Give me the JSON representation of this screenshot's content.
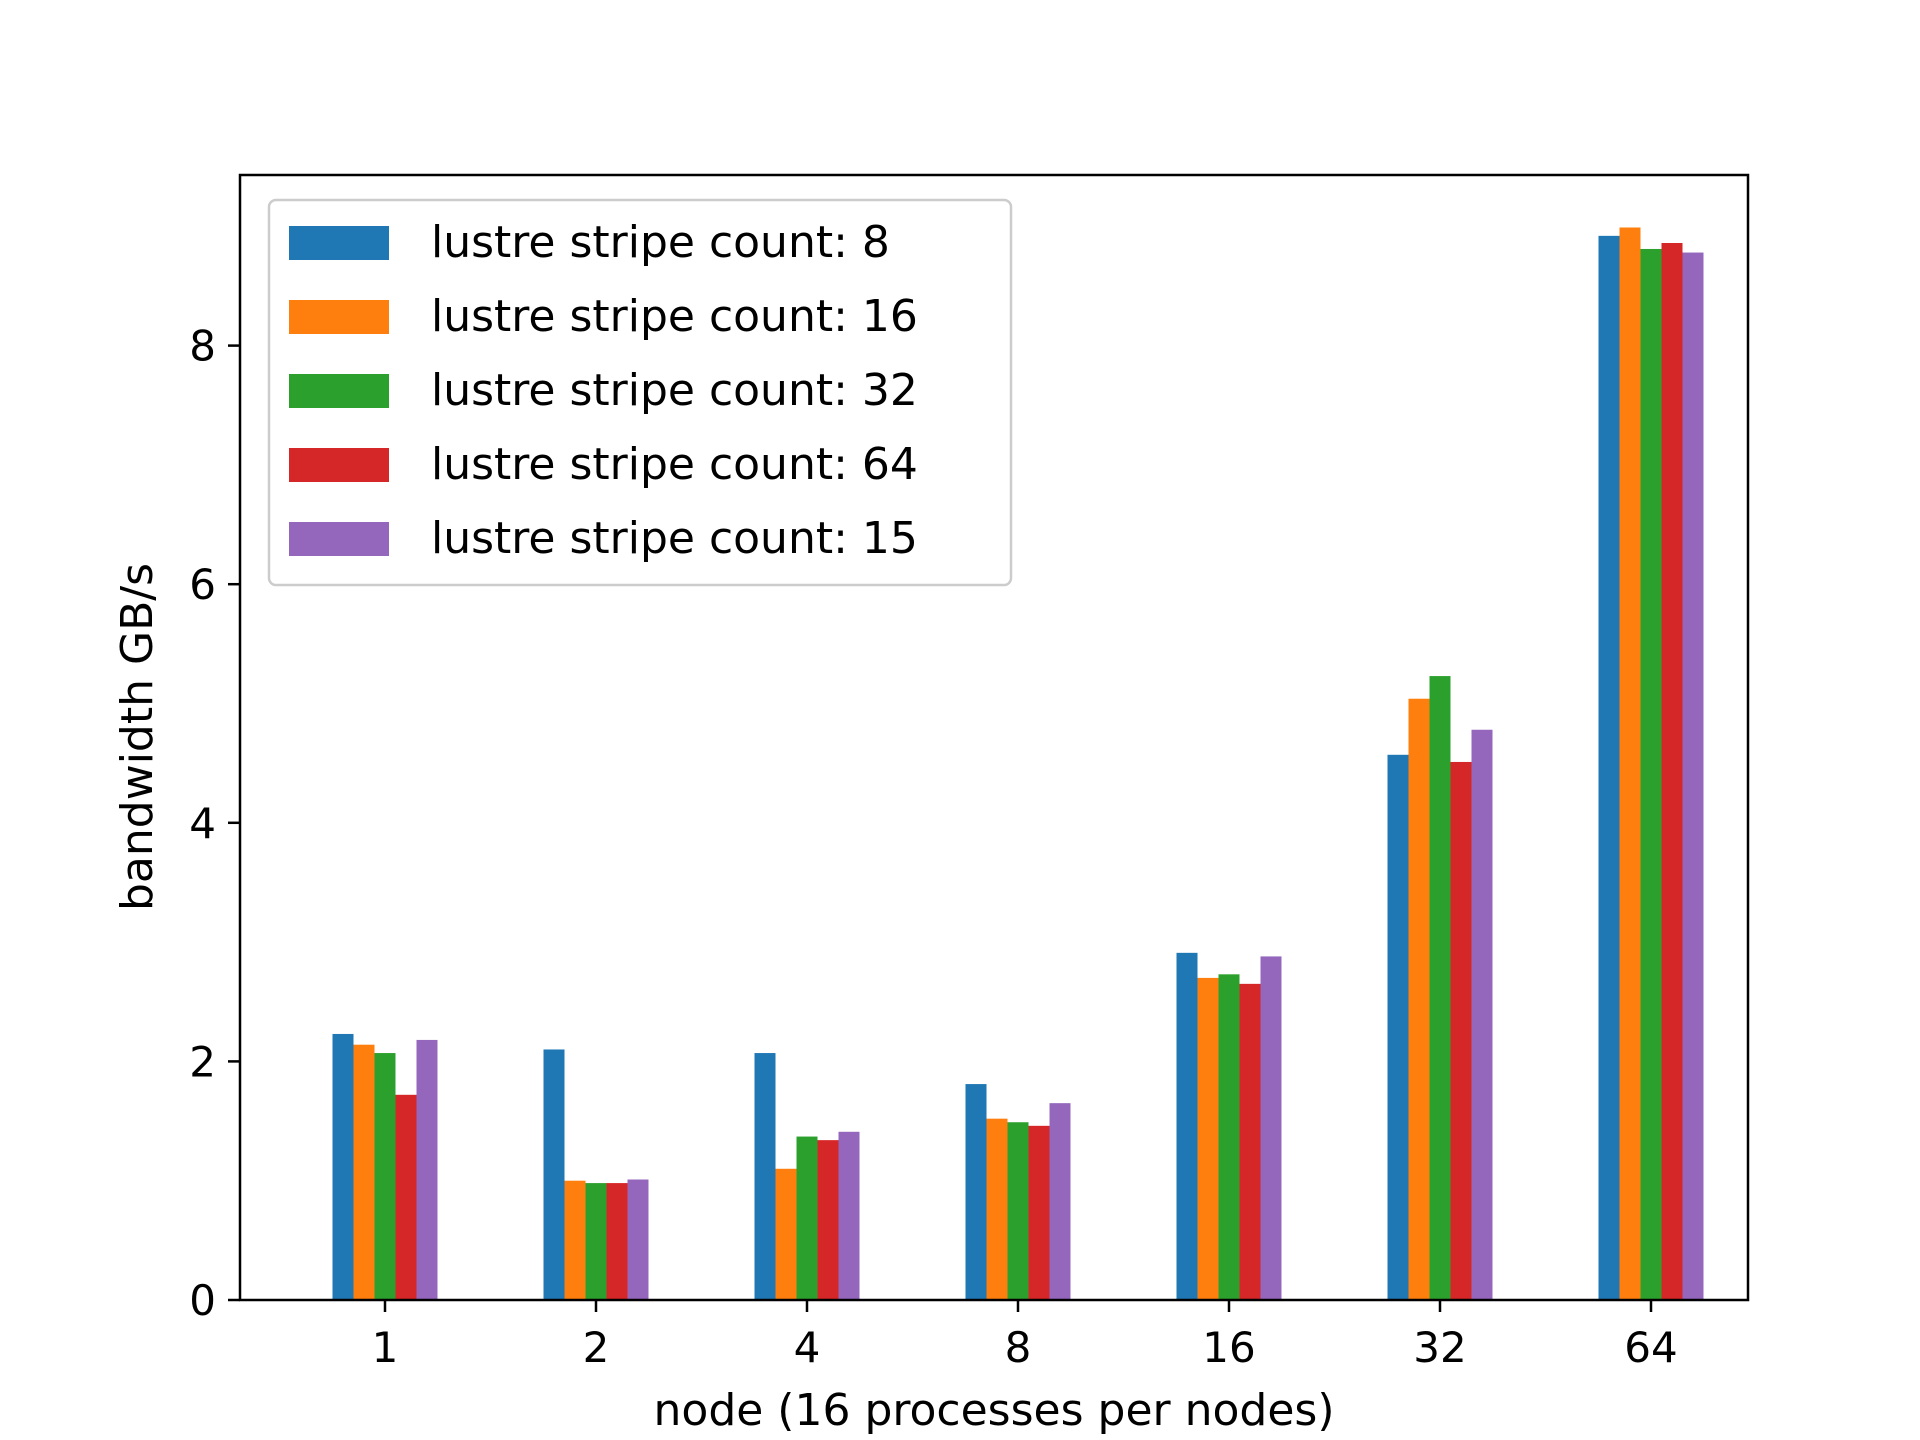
{
  "chart_data": {
    "type": "bar",
    "title": "",
    "xlabel": "node (16 processes per nodes)",
    "ylabel": "bandwidth GB/s",
    "categories": [
      "1",
      "2",
      "4",
      "8",
      "16",
      "32",
      "64"
    ],
    "ylim": [
      0,
      9.43
    ],
    "yticks": [
      0,
      2,
      4,
      6,
      8
    ],
    "grid": false,
    "legend_position": "top-left",
    "series": [
      {
        "name": "lustre stripe count: 8",
        "color": "#1f77b4",
        "values": [
          2.23,
          2.1,
          2.07,
          1.81,
          2.91,
          4.57,
          8.92
        ]
      },
      {
        "name": "lustre stripe count: 16",
        "color": "#ff7f0e",
        "values": [
          2.14,
          1.0,
          1.1,
          1.52,
          2.7,
          5.04,
          8.99
        ]
      },
      {
        "name": "lustre stripe count: 32",
        "color": "#2ca02c",
        "values": [
          2.07,
          0.98,
          1.37,
          1.49,
          2.73,
          5.23,
          8.81
        ]
      },
      {
        "name": "lustre stripe count: 64",
        "color": "#d62728",
        "values": [
          1.72,
          0.98,
          1.34,
          1.46,
          2.65,
          4.51,
          8.86
        ]
      },
      {
        "name": "lustre stripe count: 15",
        "color": "#9467bd",
        "values": [
          2.18,
          1.01,
          1.41,
          1.65,
          2.88,
          4.78,
          8.78
        ]
      }
    ]
  }
}
